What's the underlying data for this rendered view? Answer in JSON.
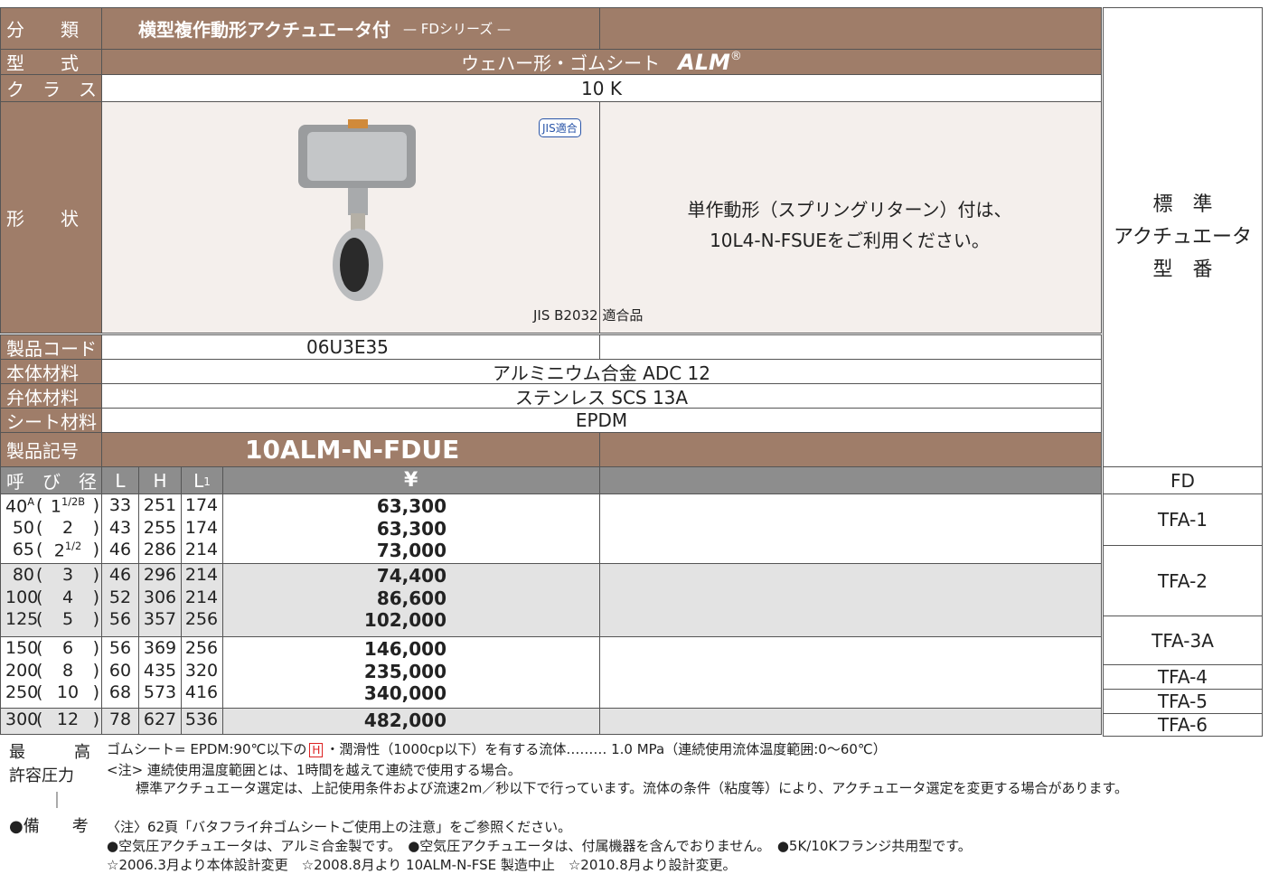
{
  "header": {
    "category_label": "分　　類",
    "category": "横型複作動形アクチュエータ付",
    "series": "— FDシリーズ —",
    "type_label": "型　　式",
    "type": "ウェハー形・ゴムシート",
    "brand": "ALM",
    "brand_mark": "®",
    "class_label": "ク　ラ　ス",
    "class": "10 K",
    "shape_label": "形　　状",
    "jis_badge": "JIS適合",
    "shape_note": [
      "単作動形（スプリングリターン）付は、",
      "10L4-N-FSUEをご利用ください。"
    ],
    "jis_std": "JIS B2032 適合品",
    "code_label": "製品コード",
    "code": "06U3E35",
    "body_label": "本体材料",
    "body": "アルミニウム合金 ADC 12",
    "disc_label": "弁体材料",
    "disc": "ステンレス SCS 13A",
    "seat_label": "シート材料",
    "seat": "EPDM",
    "model_label": "製品記号",
    "model": "10ALM-N-FDUE"
  },
  "actuator": {
    "title": [
      "標　準",
      "アクチュエータ",
      "型　番"
    ],
    "header": "FD",
    "groups": [
      "TFA-1",
      "TFA-2",
      "TFA-3A",
      "TFA-4",
      "TFA-5",
      "TFA-6"
    ]
  },
  "table": {
    "columns": {
      "size": "呼　び　径",
      "L": "L",
      "H": "H",
      "L1": "L",
      "L1_sub": "1",
      "price": "¥"
    },
    "paren_open": "(",
    "paren_close": ")",
    "rows": [
      {
        "size": "40",
        "size_unit": "A",
        "inch": "1",
        "inch_frac": "1/2",
        "inch_unit": "B",
        "L": 33,
        "H": 251,
        "L1": 174,
        "price": "63,300"
      },
      {
        "size": "50",
        "inch": "2",
        "L": 43,
        "H": 255,
        "L1": 174,
        "price": "63,300"
      },
      {
        "size": "65",
        "inch": "2",
        "inch_frac": "1/2",
        "L": 46,
        "H": 286,
        "L1": 214,
        "price": "73,000"
      },
      {
        "size": "80",
        "inch": "3",
        "L": 46,
        "H": 296,
        "L1": 214,
        "price": "74,400"
      },
      {
        "size": "100",
        "inch": "4",
        "L": 52,
        "H": 306,
        "L1": 214,
        "price": "86,600"
      },
      {
        "size": "125",
        "inch": "5",
        "L": 56,
        "H": 357,
        "L1": 256,
        "price": "102,000"
      },
      {
        "size": "150",
        "inch": "6",
        "L": 56,
        "H": 369,
        "L1": 256,
        "price": "146,000"
      },
      {
        "size": "200",
        "inch": "8",
        "L": 60,
        "H": 435,
        "L1": 320,
        "price": "235,000"
      },
      {
        "size": "250",
        "inch": "10",
        "L": 68,
        "H": 573,
        "L1": 416,
        "price": "340,000"
      },
      {
        "size": "300",
        "inch": "12",
        "L": 78,
        "H": 627,
        "L1": 536,
        "price": "482,000"
      }
    ]
  },
  "notes": {
    "label": [
      "最　　　高",
      "許容圧力",
      "｜",
      "●備　　考"
    ],
    "first": {
      "pre": "ゴムシート= EPDM:90℃以下の",
      "badge": "H",
      "post": "・潤滑性（1000cp以下）を有する流体……… 1.0 MPa（連続使用流体温度範囲:0〜60℃）"
    },
    "lines": [
      "<注> 連続使用温度範囲とは、1時間を越えて連続で使用する場合。",
      "標準アクチュエータ選定は、上記使用条件および流速2m／秒以下で行っています。流体の条件（粘度等）により、アクチュエータ選定を変更する場合があります。",
      "〈注〉62頁「バタフライ弁ゴムシートご使用上の注意」をご参照ください。",
      "●空気圧アクチュエータは、アルミ合金製です。　●空気圧アクチュエータは、付属機器を含んでおりません。　●5K/10Kフランジ共用型です。",
      "☆2006.3月より本体設計変更　☆2008.8月より 10ALM-N-FSE 製造中止　☆2010.8月より設計変更。"
    ]
  }
}
